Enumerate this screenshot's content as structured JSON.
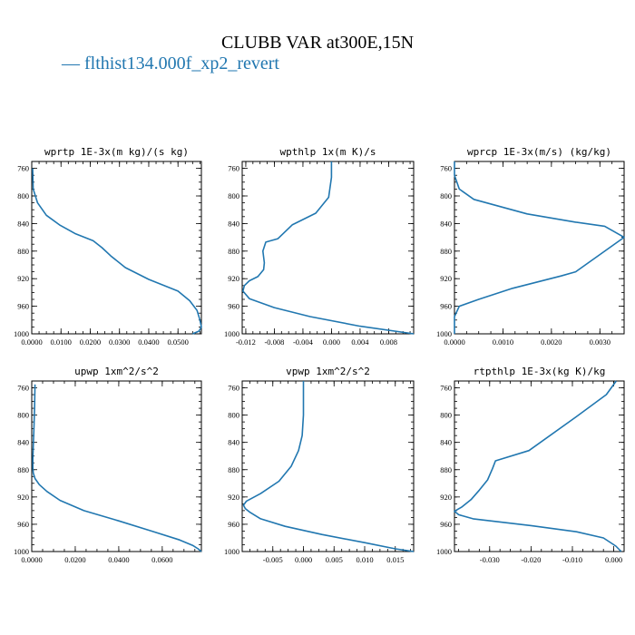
{
  "title": "CLUBB VAR at300E,15N",
  "legend": {
    "symbol": "—",
    "label": "flthist134.000f_xp2_revert",
    "color": "#2177b0"
  },
  "chart_data": [
    {
      "type": "line",
      "title": "wprtp  1E-3x(m kg)/(s kg)",
      "xlim": [
        0,
        0.058
      ],
      "ylim": [
        1000,
        750
      ],
      "xticks": [
        0,
        0.01,
        0.02,
        0.03,
        0.04,
        0.05
      ],
      "xticklabels": [
        "0.0000",
        "0.0100",
        "0.0200",
        "0.0300",
        "0.0400",
        "0.0500"
      ],
      "yticks": [
        760,
        800,
        840,
        880,
        920,
        960,
        1000
      ],
      "x": [
        0.0003,
        0.0005,
        0.002,
        0.005,
        0.0095,
        0.015,
        0.021,
        0.024,
        0.027,
        0.032,
        0.04,
        0.05,
        0.054,
        0.0565,
        0.0575,
        0.058,
        0.0572,
        0.055
      ],
      "y": [
        760,
        790,
        810,
        828,
        842,
        855,
        865,
        875,
        887,
        904,
        921,
        938,
        952,
        966,
        980,
        990,
        996,
        1000
      ]
    },
    {
      "type": "line",
      "title": "wpthlp  1x(m K)/s",
      "xlim": [
        -0.0125,
        0.0115
      ],
      "ylim": [
        1000,
        750
      ],
      "xticks": [
        -0.012,
        -0.008,
        -0.004,
        0,
        0.004,
        0.008
      ],
      "xticklabels": [
        "-0.012",
        "-0.008",
        "-0.004",
        "0.000",
        "0.004",
        "0.008"
      ],
      "yticks": [
        760,
        800,
        840,
        880,
        920,
        960,
        1000
      ],
      "x": [
        0.0,
        0.0,
        -0.0004,
        -0.0022,
        -0.0055,
        -0.0075,
        -0.0092,
        -0.0096,
        -0.0094,
        -0.0095,
        -0.0103,
        -0.0115,
        -0.0122,
        -0.0124,
        -0.0115,
        -0.008,
        -0.003,
        0.004,
        0.0115
      ],
      "y": [
        750,
        773,
        802,
        825,
        842,
        862,
        867,
        880,
        897,
        907,
        917,
        923,
        930,
        938,
        949,
        962,
        975,
        989,
        1000
      ]
    },
    {
      "type": "line",
      "title": "wprcp  1E-3x(m/s) (kg/kg)",
      "xlim": [
        0,
        0.0035
      ],
      "ylim": [
        1000,
        750
      ],
      "xticks": [
        0,
        0.001,
        0.002,
        0.003
      ],
      "xticklabels": [
        "0.0000",
        "0.0010",
        "0.0020",
        "0.0030"
      ],
      "yticks": [
        760,
        800,
        840,
        880,
        920,
        960,
        1000
      ],
      "x": [
        0.0,
        0.0,
        0.0001,
        0.0004,
        0.0015,
        0.0025,
        0.0031,
        0.0035,
        0.003,
        0.0027,
        0.0025,
        0.0022,
        0.0012,
        0.0005,
        0.0001,
        0.0,
        0.0
      ],
      "y": [
        750,
        770,
        790,
        805,
        826,
        838,
        844,
        860,
        885,
        900,
        910,
        916,
        934,
        950,
        960,
        975,
        1000
      ]
    },
    {
      "type": "line",
      "title": "upwp  1xm^2/s^2",
      "xlim": [
        0,
        0.078
      ],
      "ylim": [
        1000,
        750
      ],
      "xticks": [
        0,
        0.02,
        0.04,
        0.06
      ],
      "xticklabels": [
        "0.0000",
        "0.0200",
        "0.0400",
        "0.0600"
      ],
      "yticks": [
        760,
        800,
        840,
        880,
        920,
        960,
        1000
      ],
      "x": [
        0.0015,
        0.0013,
        0.001,
        0.0007,
        0.0005,
        0.0005,
        0.0007,
        0.0015,
        0.0035,
        0.007,
        0.013,
        0.024,
        0.04,
        0.055,
        0.068,
        0.074,
        0.0765,
        0.078
      ],
      "y": [
        755,
        790,
        820,
        845,
        865,
        877,
        885,
        893,
        902,
        912,
        925,
        940,
        955,
        970,
        983,
        991,
        996,
        1000
      ]
    },
    {
      "type": "line",
      "title": "vpwp  1xm^2/s^2",
      "xlim": [
        -0.01,
        0.018
      ],
      "ylim": [
        1000,
        750
      ],
      "xticks": [
        -0.005,
        0,
        0.005,
        0.01,
        0.015
      ],
      "xticklabels": [
        "-0.005",
        "0.000",
        "0.005",
        "0.010",
        "0.015"
      ],
      "yticks": [
        760,
        800,
        840,
        880,
        920,
        960,
        1000
      ],
      "x": [
        0.0,
        0.0,
        -0.0002,
        -0.0008,
        -0.002,
        -0.004,
        -0.007,
        -0.0093,
        -0.0098,
        -0.0095,
        -0.0088,
        -0.007,
        -0.003,
        0.003,
        0.01,
        0.015,
        0.018
      ],
      "y": [
        750,
        800,
        830,
        852,
        875,
        897,
        915,
        926,
        932,
        937,
        942,
        952,
        963,
        975,
        987,
        996,
        1000
      ]
    },
    {
      "type": "line",
      "title": "rtpthlp  1E-3x(kg K)/kg",
      "xlim": [
        -0.0385,
        0.0025
      ],
      "ylim": [
        1000,
        750
      ],
      "xticks": [
        -0.03,
        -0.02,
        -0.01,
        0
      ],
      "xticklabels": [
        "-0.030",
        "-0.020",
        "-0.010",
        "0.000"
      ],
      "yticks": [
        760,
        800,
        840,
        880,
        920,
        960,
        1000
      ],
      "x": [
        0.0006,
        -0.0018,
        -0.0092,
        -0.0205,
        -0.0286,
        -0.0293,
        -0.0305,
        -0.0325,
        -0.0345,
        -0.0368,
        -0.0385,
        -0.0375,
        -0.034,
        -0.02,
        -0.009,
        -0.0025,
        0.0005,
        0.0018
      ],
      "y": [
        750,
        770,
        803,
        852,
        867,
        878,
        895,
        910,
        924,
        935,
        941,
        946,
        952,
        962,
        971,
        980,
        992,
        1000
      ]
    }
  ]
}
